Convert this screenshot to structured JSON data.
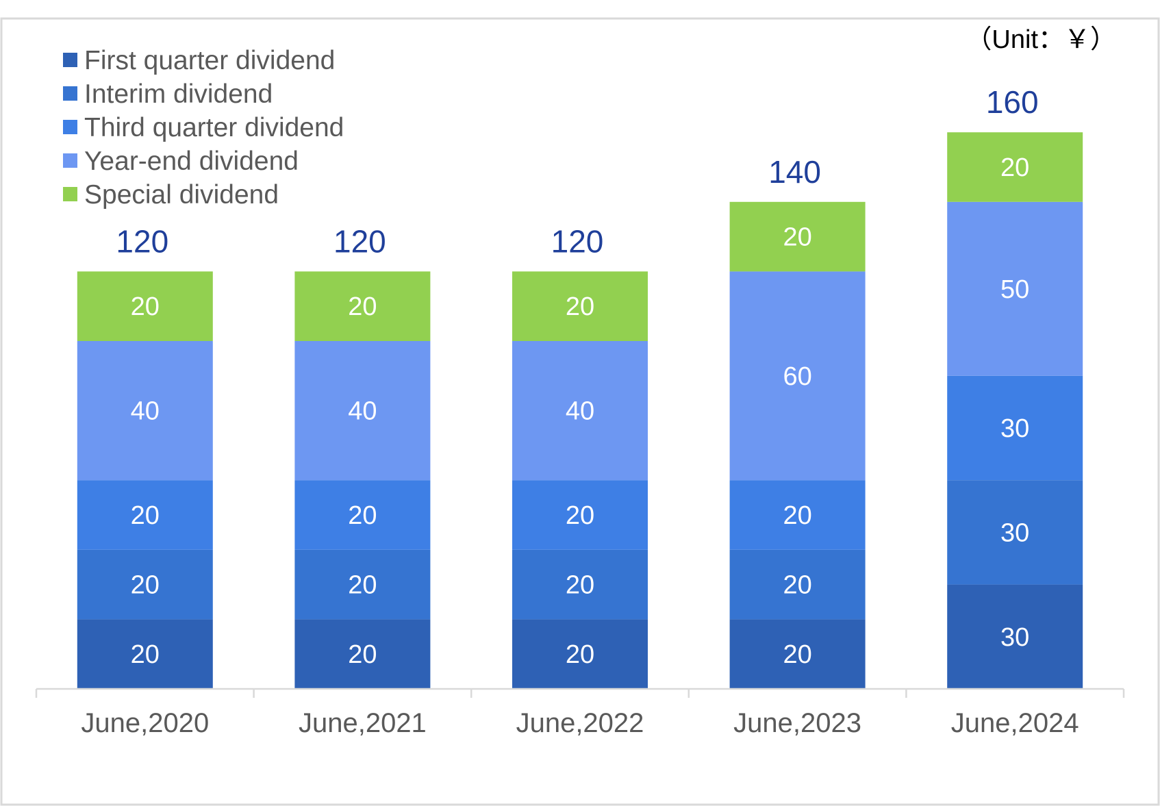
{
  "chart_data": {
    "type": "bar",
    "stacked": true,
    "unit_label": "（Unit：￥）",
    "categories": [
      "June,2020",
      "June,2021",
      "June,2022",
      "June,2023",
      "June,2024"
    ],
    "series": [
      {
        "name": "First quarter dividend",
        "color": "#2e61b5",
        "values": [
          20,
          20,
          20,
          20,
          30
        ]
      },
      {
        "name": "Interim dividend",
        "color": "#3674d1",
        "values": [
          20,
          20,
          20,
          20,
          30
        ]
      },
      {
        "name": "Third quarter dividend",
        "color": "#3e7fe5",
        "values": [
          20,
          20,
          20,
          20,
          30
        ]
      },
      {
        "name": "Year-end dividend",
        "color": "#6d97f2",
        "values": [
          40,
          40,
          40,
          60,
          50
        ]
      },
      {
        "name": "Special dividend",
        "color": "#92d050",
        "values": [
          20,
          20,
          20,
          20,
          20
        ]
      }
    ],
    "totals": [
      120,
      120,
      120,
      140,
      160
    ],
    "ylim": [
      0,
      180
    ],
    "grid": false,
    "legend_position": "top-left",
    "total_label_color": "#1f3f9a",
    "segment_label_color": "#ffffff"
  }
}
